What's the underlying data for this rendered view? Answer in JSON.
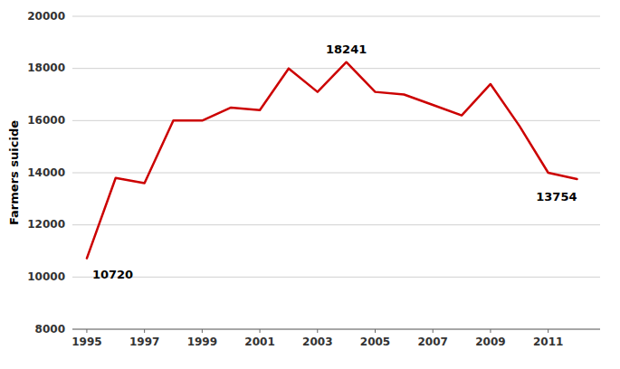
{
  "chart_data": {
    "type": "line",
    "ylabel": "Farmers suicide",
    "x": [
      1995,
      1996,
      1997,
      1998,
      1999,
      2000,
      2001,
      2002,
      2003,
      2004,
      2005,
      2006,
      2007,
      2008,
      2009,
      2010,
      2011,
      2012
    ],
    "values": [
      10720,
      13800,
      13600,
      16000,
      16000,
      16500,
      16400,
      18000,
      17100,
      18241,
      17100,
      17000,
      16600,
      16200,
      17400,
      15800,
      14000,
      13754
    ],
    "color": "#cc0000",
    "xlim": [
      1994.5,
      2012.8
    ],
    "xticks": [
      1995,
      1997,
      1999,
      2001,
      2003,
      2005,
      2007,
      2009,
      2011
    ],
    "ylim": [
      8000,
      20000
    ],
    "yticks": [
      8000,
      10000,
      12000,
      14000,
      16000,
      18000,
      20000
    ],
    "grid": true,
    "annotations": [
      {
        "text": "10720",
        "x": 1995,
        "y": 10720
      },
      {
        "text": "18241",
        "x": 2004,
        "y": 18241
      },
      {
        "text": "13754",
        "x": 2012,
        "y": 13754
      }
    ]
  }
}
